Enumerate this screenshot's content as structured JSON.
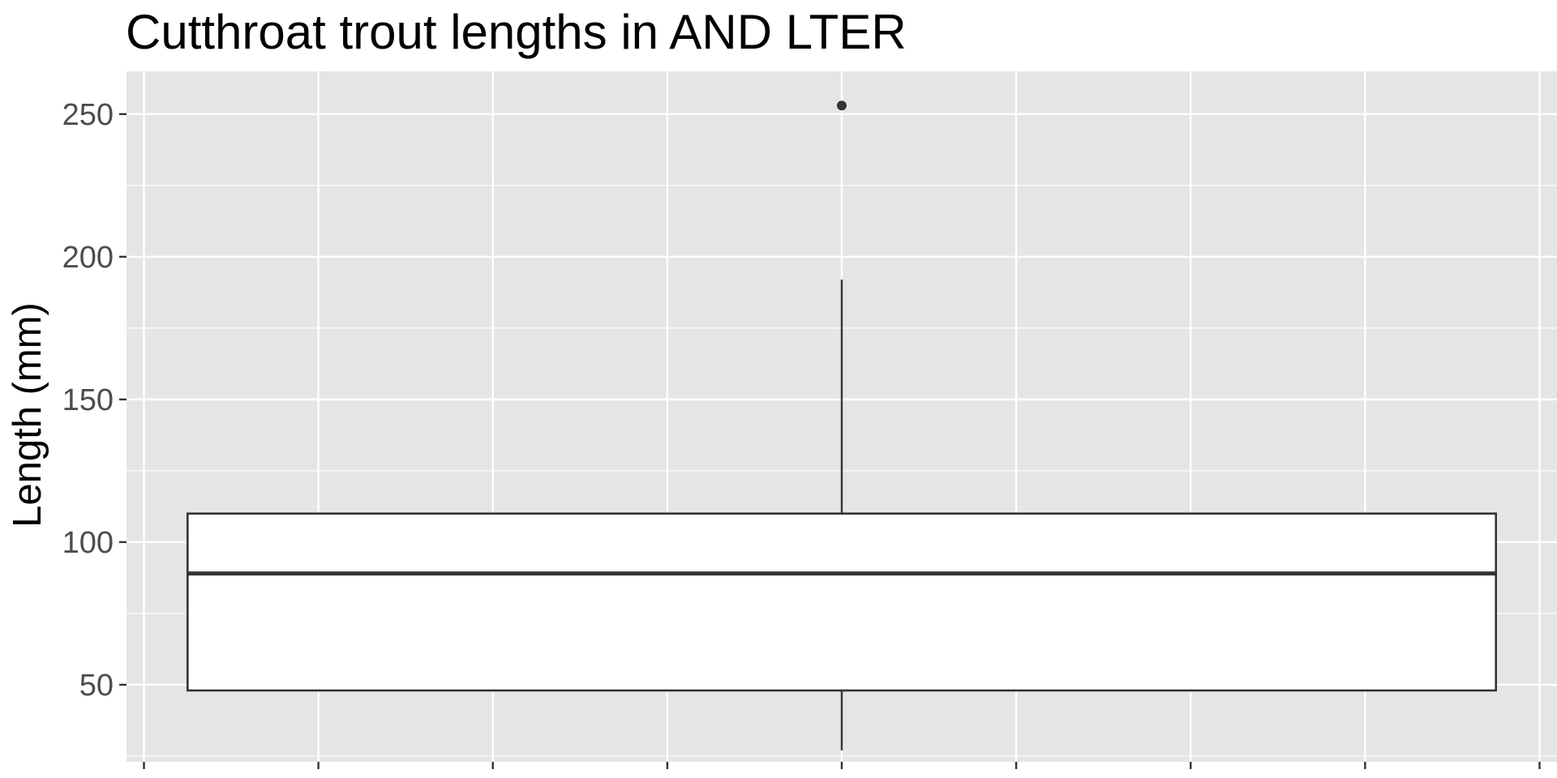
{
  "chart_data": {
    "type": "boxplot",
    "title": "Cutthroat trout lengths in AND LTER",
    "xlabel": "",
    "ylabel": "Length (mm)",
    "ylim": [
      23,
      265
    ],
    "yticks": [
      50,
      100,
      150,
      200,
      250
    ],
    "ytick_labels": [
      "50",
      "100",
      "150",
      "200",
      "250"
    ],
    "x_categorical": false,
    "xlim": [
      -0.41,
      0.41
    ],
    "xticks": [
      -0.4,
      -0.3,
      -0.2,
      -0.1,
      0.0,
      0.1,
      0.2,
      0.3,
      0.4
    ],
    "xticks_labeled": false,
    "box": {
      "whisker_low": 27,
      "q1": 48,
      "median": 89,
      "q3": 110,
      "whisker_high": 192,
      "outliers": [
        253
      ],
      "x_center": 0,
      "x_min": -0.375,
      "x_max": 0.375,
      "fill": "#ffffff",
      "line_color": "#333333"
    },
    "grid": true,
    "colors": {
      "panel_background": "#e5e5e5",
      "grid_lines": "#ffffff",
      "box_line": "#333333",
      "box_fill": "#ffffff",
      "axis_text": "#4d4d4d"
    }
  }
}
